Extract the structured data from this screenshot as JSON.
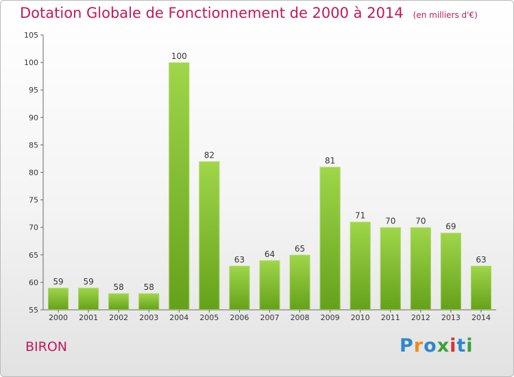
{
  "title": "Dotation Globale de Fonctionnement de 2000 à 2014",
  "subtitle": "(en milliers d'€)",
  "commune": "BIRON",
  "logo": {
    "text": "Proxiti",
    "colors": [
      "#2f86d0",
      "#f08a1c",
      "#2f86d0",
      "#3aa13a",
      "#d93131",
      "#2f86d0",
      "#3aa13a"
    ]
  },
  "chart_data": {
    "type": "bar",
    "title": "Dotation Globale de Fonctionnement de 2000 à 2014",
    "subtitle": "(en milliers d'€)",
    "xlabel": "",
    "ylabel": "",
    "categories": [
      "2000",
      "2001",
      "2002",
      "2003",
      "2004",
      "2005",
      "2006",
      "2007",
      "2008",
      "2009",
      "2010",
      "2011",
      "2012",
      "2013",
      "2014"
    ],
    "values": [
      59,
      59,
      58,
      58,
      100,
      82,
      63,
      64,
      65,
      81,
      71,
      70,
      70,
      69,
      63
    ],
    "ylim": [
      55,
      105
    ],
    "yticks": [
      55,
      60,
      65,
      70,
      75,
      80,
      85,
      90,
      95,
      100,
      105
    ],
    "grid": false,
    "bar_color": "#7dbf2e",
    "legend": "none"
  }
}
